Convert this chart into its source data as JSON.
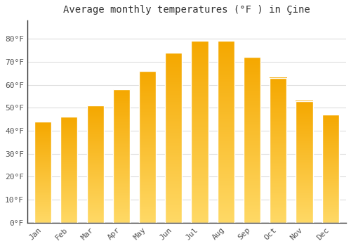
{
  "title": "Average monthly temperatures (°F ) in Çine",
  "months": [
    "Jan",
    "Feb",
    "Mar",
    "Apr",
    "May",
    "Jun",
    "Jul",
    "Aug",
    "Sep",
    "Oct",
    "Nov",
    "Dec"
  ],
  "values": [
    44,
    46,
    51,
    58,
    66,
    74,
    79,
    79,
    72,
    63,
    53,
    47
  ],
  "bar_color_bottom": "#F5A800",
  "bar_color_top": "#FFD966",
  "ylim": [
    0,
    88
  ],
  "yticks": [
    0,
    10,
    20,
    30,
    40,
    50,
    60,
    70,
    80
  ],
  "ytick_labels": [
    "0°F",
    "10°F",
    "20°F",
    "30°F",
    "40°F",
    "50°F",
    "60°F",
    "70°F",
    "80°F"
  ],
  "background_color": "#FFFFFF",
  "grid_color": "#DDDDDD",
  "title_fontsize": 10,
  "tick_fontsize": 8,
  "font_family": "monospace",
  "tick_color": "#555555",
  "title_color": "#333333",
  "bar_width": 0.65
}
